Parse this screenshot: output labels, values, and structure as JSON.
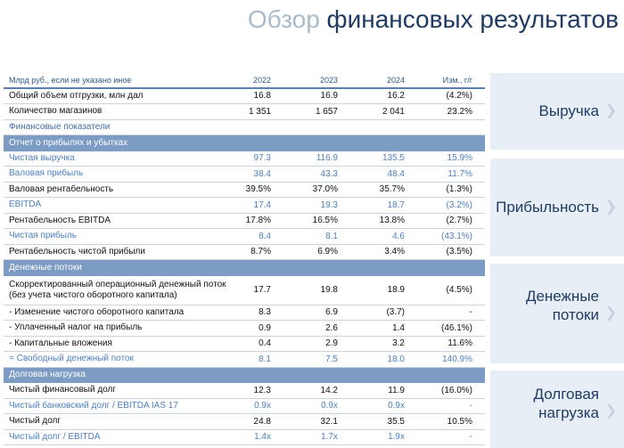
{
  "title": {
    "part1": "Обзор",
    "part2": "финансовых результатов"
  },
  "header": {
    "label": "Млрд руб., если не указано иное",
    "y2022": "2022",
    "y2023": "2023",
    "y2024": "2024",
    "chg": "Изм., г/г"
  },
  "rows": [
    {
      "label": "Общий объем отгрузки, млн дал",
      "v2022": "16.8",
      "v2023": "16.9",
      "v2024": "16.2",
      "chg": "(4.2%)"
    },
    {
      "label": "Количество магазинов",
      "v2022": "1 351",
      "v2023": "1 657",
      "v2024": "2 041",
      "chg": "23.2%"
    },
    {
      "label": "Финансовые показатели"
    },
    {
      "label": "Отчет о прибылях и убытках"
    },
    {
      "label": "Чистая выручка",
      "v2022": "97.3",
      "v2023": "116.9",
      "v2024": "135.5",
      "chg": "15.9%"
    },
    {
      "label": "Валовая прибыль",
      "v2022": "38.4",
      "v2023": "43.3",
      "v2024": "48.4",
      "chg": "11.7%"
    },
    {
      "label": "Валовая рентабельность",
      "v2022": "39.5%",
      "v2023": "37.0%",
      "v2024": "35.7%",
      "chg": "(1.3%)"
    },
    {
      "label": "EBITDA",
      "v2022": "17.4",
      "v2023": "19.3",
      "v2024": "18.7",
      "chg": "(3.2%)"
    },
    {
      "label": "Рентабельность EBITDA",
      "v2022": "17.8%",
      "v2023": "16.5%",
      "v2024": "13.8%",
      "chg": "(2.7%)"
    },
    {
      "label": "Чистая прибыль",
      "v2022": "8.4",
      "v2023": "8.1",
      "v2024": "4.6",
      "chg": "(43.1%)"
    },
    {
      "label": "Рентабельность чистой прибыли",
      "v2022": "8.7%",
      "v2023": "6.9%",
      "v2024": "3.4%",
      "chg": "(3.5%)"
    },
    {
      "label": "Денежные потоки"
    },
    {
      "label": "Скорректированный операционный денежный поток (без учета чистого оборотного капитала)",
      "v2022": "17.7",
      "v2023": "19.8",
      "v2024": "18.9",
      "chg": "(4.5%)"
    },
    {
      "label": "- Изменение чистого оборотного капитала",
      "v2022": "8.3",
      "v2023": "6.9",
      "v2024": "(3.7)",
      "chg": "-"
    },
    {
      "label": "- Уплаченный налог на прибыль",
      "v2022": "0.9",
      "v2023": "2.6",
      "v2024": "1.4",
      "chg": "(46.1%)"
    },
    {
      "label": "- Капитальные вложения",
      "v2022": "0.4",
      "v2023": "2.9",
      "v2024": "3.2",
      "chg": "11.6%"
    },
    {
      "label": "= Свободный денежный поток",
      "v2022": "8.1",
      "v2023": "7.5",
      "v2024": "18.0",
      "chg": "140.9%"
    },
    {
      "label": "Долговая нагрузка"
    },
    {
      "label": "Чистый финансовый долг",
      "v2022": "12.3",
      "v2023": "14.2",
      "v2024": "11.9",
      "chg": "(16.0%)"
    },
    {
      "label": "Чистый банковский долг / EBITDA IAS 17",
      "v2022": "0.9x",
      "v2023": "0.9x",
      "v2024": "0.9x",
      "chg": "-"
    },
    {
      "label": "Чистый долг",
      "v2022": "24.8",
      "v2023": "32.1",
      "v2024": "35.5",
      "chg": "10.5%"
    },
    {
      "label": "Чистый долг / EBITDA",
      "v2022": "1.4x",
      "v2023": "1.7x",
      "v2024": "1.9x",
      "chg": "-"
    }
  ],
  "side_panels": {
    "revenue": {
      "line1": "Выручка",
      "line2": ""
    },
    "profitability": {
      "line1": "Прибыльность",
      "line2": ""
    },
    "cashflow": {
      "line1": "Денежные",
      "line2": "потоки"
    },
    "debt": {
      "line1": "Долговая",
      "line2": "нагрузка"
    }
  },
  "colors": {
    "dark_blue": "#1f3b63",
    "light_blue_title": "#a9bccc",
    "section_band": "#7c9cc3",
    "highlight_text": "#4d80c0",
    "panel_bg": "#e8eef5"
  }
}
